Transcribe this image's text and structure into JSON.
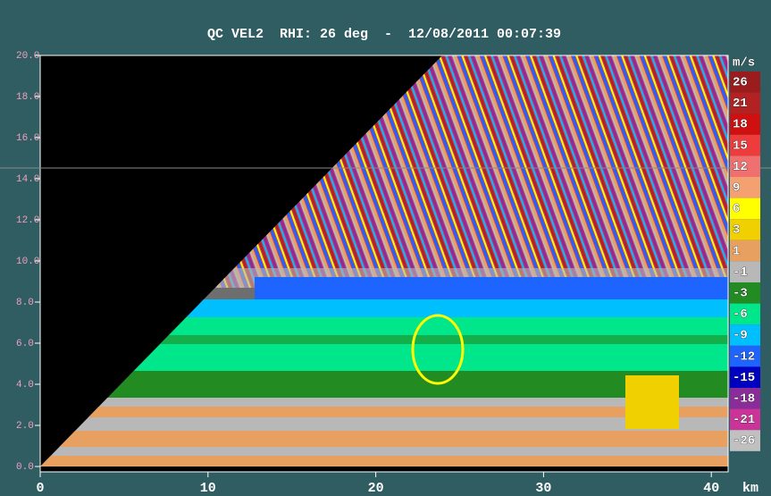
{
  "chart_data": {
    "type": "rhi",
    "title": "QC VEL2  RHI: 26 deg  -  12/08/2011 00:07:39",
    "xlim": [
      0,
      41
    ],
    "xticks": [
      0,
      10,
      20,
      30,
      40
    ],
    "x_unit": "km",
    "ylim": [
      0,
      20
    ],
    "yticks": [
      {
        "value": 0,
        "label": "0.0"
      },
      {
        "value": 2,
        "label": "2.0"
      },
      {
        "value": 4,
        "label": "4.0"
      },
      {
        "value": 6,
        "label": "6.0"
      },
      {
        "value": 8,
        "label": "8.0"
      },
      {
        "value": 10,
        "label": "10.0"
      },
      {
        "value": 12,
        "label": "12.0"
      },
      {
        "value": 14,
        "label": "14.0"
      },
      {
        "value": 16,
        "label": "16.0"
      },
      {
        "value": 18,
        "label": "18.0"
      },
      {
        "value": 20,
        "label": "20.0"
      }
    ],
    "colorbar": {
      "unit": "m/s",
      "labels": [
        "26",
        "21",
        "18",
        "15",
        "12",
        "9",
        "6",
        "3",
        "1",
        "-1",
        "-3",
        "-6",
        "-9",
        "-12",
        "-15",
        "-18",
        "-21",
        "-26"
      ],
      "colors": [
        "#9a1c1c",
        "#b22222",
        "#d01010",
        "#ee3b3b",
        "#f07070",
        "#f4a070",
        "#ffff00",
        "#f0d000",
        "#e8a060",
        "#b8b8b8",
        "#228b22",
        "#00e68a",
        "#00bfff",
        "#1e64ff",
        "#0000c0",
        "#8b2c9b",
        "#cc3399",
        "#c0c0c0"
      ]
    }
  }
}
